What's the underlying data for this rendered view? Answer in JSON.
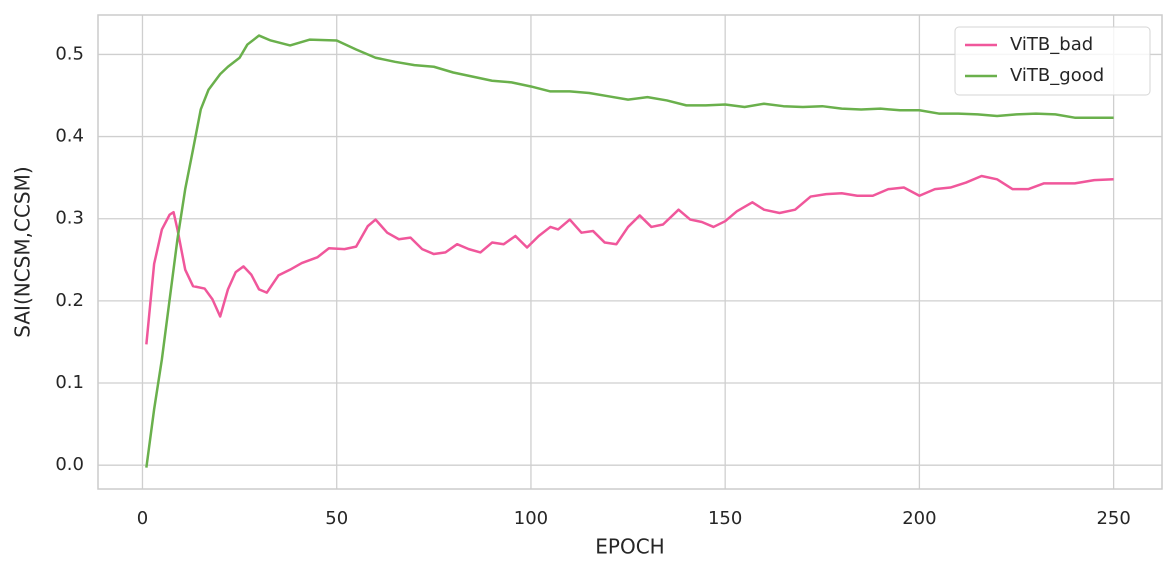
{
  "chart_data": {
    "type": "line",
    "xlabel": "EPOCH",
    "ylabel": "SAI(NCSM,CCSM)",
    "xlim": [
      -11.45,
      262.45
    ],
    "ylim": [
      -0.029,
      0.548
    ],
    "xticks": [
      0,
      50,
      100,
      150,
      200,
      250
    ],
    "yticks": [
      {
        "value": 0,
        "label": "0.0"
      },
      0.1,
      0.2,
      0.3,
      0.4,
      0.5
    ],
    "grid": true,
    "legend": "upper right",
    "series": [
      {
        "name": "ViTB_bad",
        "color": "#f0579b",
        "x": [
          1,
          3,
          5,
          7,
          8,
          9,
          11,
          13,
          16,
          18,
          20,
          22,
          24,
          26,
          28,
          30,
          32,
          35,
          38,
          41,
          45,
          48,
          52,
          55,
          58,
          60,
          63,
          66,
          69,
          72,
          75,
          78,
          81,
          84,
          87,
          90,
          93,
          96,
          99,
          102,
          105,
          107,
          110,
          113,
          116,
          119,
          122,
          125,
          128,
          131,
          134,
          138,
          141,
          144,
          147,
          150,
          153,
          157,
          160,
          164,
          168,
          172,
          176,
          180,
          184,
          188,
          192,
          196,
          200,
          204,
          208,
          212,
          216,
          220,
          224,
          228,
          232,
          236,
          240,
          245,
          250
        ],
        "values": [
          0.147,
          0.245,
          0.287,
          0.305,
          0.308,
          0.287,
          0.238,
          0.218,
          0.215,
          0.202,
          0.181,
          0.214,
          0.235,
          0.242,
          0.232,
          0.214,
          0.21,
          0.231,
          0.238,
          0.246,
          0.253,
          0.264,
          0.263,
          0.266,
          0.291,
          0.299,
          0.283,
          0.275,
          0.277,
          0.263,
          0.257,
          0.259,
          0.269,
          0.263,
          0.259,
          0.271,
          0.269,
          0.279,
          0.265,
          0.279,
          0.29,
          0.287,
          0.299,
          0.283,
          0.285,
          0.271,
          0.269,
          0.29,
          0.304,
          0.29,
          0.293,
          0.311,
          0.299,
          0.296,
          0.29,
          0.297,
          0.309,
          0.32,
          0.311,
          0.307,
          0.311,
          0.327,
          0.33,
          0.331,
          0.328,
          0.328,
          0.336,
          0.338,
          0.328,
          0.336,
          0.338,
          0.344,
          0.352,
          0.348,
          0.336,
          0.336,
          0.343,
          0.343,
          0.343,
          0.347,
          0.348
        ]
      },
      {
        "name": "ViTB_good",
        "color": "#6ab04c",
        "x": [
          1,
          3,
          5,
          7,
          9,
          11,
          13,
          15,
          17,
          20,
          22,
          25,
          27,
          30,
          33,
          38,
          43,
          50,
          55,
          60,
          65,
          70,
          75,
          80,
          85,
          90,
          95,
          100,
          105,
          110,
          115,
          120,
          125,
          130,
          135,
          140,
          145,
          150,
          155,
          160,
          165,
          170,
          175,
          180,
          185,
          190,
          195,
          200,
          205,
          210,
          215,
          220,
          225,
          230,
          235,
          240,
          245,
          250
        ],
        "values": [
          -0.003,
          0.068,
          0.129,
          0.202,
          0.275,
          0.336,
          0.384,
          0.433,
          0.457,
          0.476,
          0.485,
          0.496,
          0.512,
          0.523,
          0.517,
          0.511,
          0.518,
          0.517,
          0.506,
          0.496,
          0.491,
          0.487,
          0.485,
          0.478,
          0.473,
          0.468,
          0.466,
          0.461,
          0.455,
          0.455,
          0.453,
          0.449,
          0.445,
          0.448,
          0.444,
          0.438,
          0.438,
          0.439,
          0.436,
          0.44,
          0.437,
          0.436,
          0.437,
          0.434,
          0.433,
          0.434,
          0.432,
          0.432,
          0.428,
          0.428,
          0.427,
          0.425,
          0.427,
          0.428,
          0.427,
          0.423,
          0.423,
          0.423
        ]
      }
    ]
  }
}
